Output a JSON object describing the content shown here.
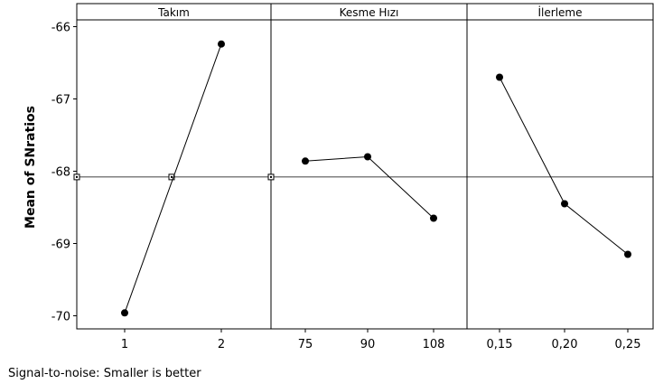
{
  "chart_data": {
    "type": "line",
    "ylabel": "Mean of SNratios",
    "ylim": [
      -70.2,
      -65.8
    ],
    "yticks": [
      -66,
      -67,
      -68,
      -69,
      -70
    ],
    "reference_line": -68.08,
    "footnote": "Signal-to-noise: Smaller is better",
    "panels": [
      {
        "title": "Takım",
        "categories": [
          "1",
          "2"
        ],
        "values": [
          -69.96,
          -66.24
        ]
      },
      {
        "title": "Kesme Hızı",
        "categories": [
          "75",
          "90",
          "108"
        ],
        "values": [
          -67.86,
          -67.8,
          -68.65
        ]
      },
      {
        "title": "İlerleme",
        "categories": [
          "0,15",
          "0,20",
          "0,25"
        ],
        "values": [
          -66.7,
          -68.45,
          -69.15
        ]
      }
    ]
  }
}
